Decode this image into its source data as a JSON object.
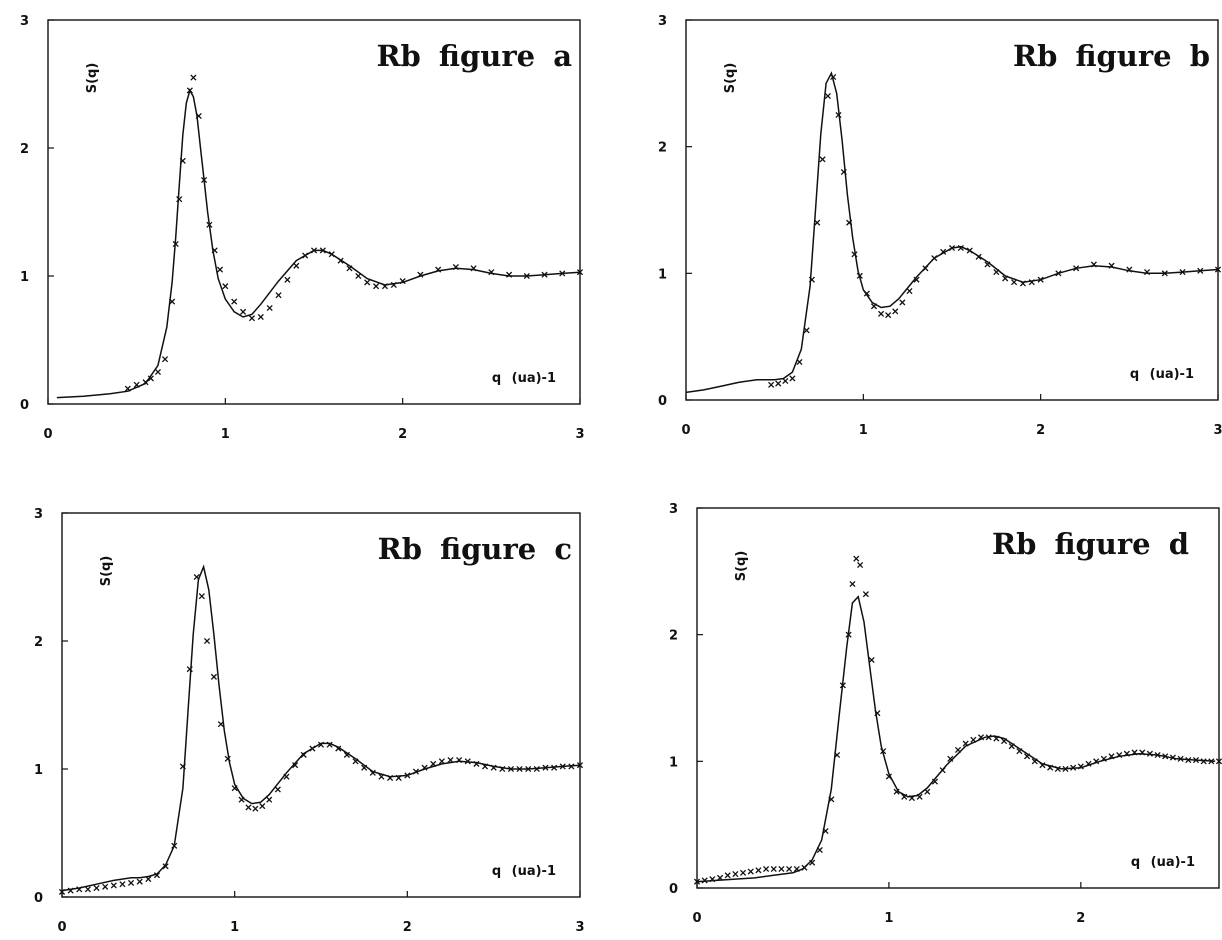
{
  "chart_data": [
    {
      "type": "line",
      "title": "Rb figure a",
      "xlabel": "q (ua)-1",
      "ylabel": "S(q)",
      "xlim": [
        0,
        3
      ],
      "ylim": [
        0,
        3
      ],
      "xticks": [
        "0",
        "1",
        "2",
        "3"
      ],
      "yticks": [
        "0",
        "1",
        "2",
        "3"
      ],
      "grid": false,
      "series": [
        {
          "kind": "line",
          "x": [
            0.05,
            0.2,
            0.35,
            0.45,
            0.55,
            0.62,
            0.67,
            0.7,
            0.72,
            0.74,
            0.76,
            0.78,
            0.8,
            0.82,
            0.84,
            0.86,
            0.88,
            0.9,
            0.93,
            0.96,
            1.0,
            1.05,
            1.1,
            1.15,
            1.2,
            1.3,
            1.4,
            1.5,
            1.55,
            1.6,
            1.7,
            1.8,
            1.9,
            2.0,
            2.1,
            2.2,
            2.3,
            2.4,
            2.5,
            2.6,
            2.7,
            2.8,
            2.9,
            3.0
          ],
          "y": [
            0.05,
            0.06,
            0.08,
            0.1,
            0.16,
            0.3,
            0.6,
            0.95,
            1.3,
            1.7,
            2.1,
            2.35,
            2.45,
            2.4,
            2.25,
            2.0,
            1.75,
            1.5,
            1.2,
            0.98,
            0.82,
            0.72,
            0.68,
            0.7,
            0.78,
            0.96,
            1.12,
            1.2,
            1.2,
            1.17,
            1.08,
            0.98,
            0.93,
            0.95,
            1.0,
            1.04,
            1.06,
            1.05,
            1.02,
            1.0,
            1.0,
            1.01,
            1.02,
            1.03
          ]
        },
        {
          "kind": "scatter",
          "x": [
            0.45,
            0.5,
            0.55,
            0.58,
            0.62,
            0.66,
            0.7,
            0.72,
            0.74,
            0.76,
            0.8,
            0.82,
            0.85,
            0.88,
            0.91,
            0.94,
            0.97,
            1.0,
            1.05,
            1.1,
            1.15,
            1.2,
            1.25,
            1.3,
            1.35,
            1.4,
            1.45,
            1.5,
            1.55,
            1.6,
            1.65,
            1.7,
            1.75,
            1.8,
            1.85,
            1.9,
            1.95,
            2.0,
            2.1,
            2.2,
            2.3,
            2.4,
            2.5,
            2.6,
            2.7,
            2.8,
            2.9,
            3.0
          ],
          "y": [
            0.12,
            0.15,
            0.17,
            0.2,
            0.25,
            0.35,
            0.8,
            1.25,
            1.6,
            1.9,
            2.45,
            2.55,
            2.25,
            1.75,
            1.4,
            1.2,
            1.05,
            0.92,
            0.8,
            0.72,
            0.67,
            0.68,
            0.75,
            0.85,
            0.97,
            1.08,
            1.16,
            1.2,
            1.2,
            1.17,
            1.12,
            1.06,
            1.0,
            0.95,
            0.92,
            0.92,
            0.93,
            0.96,
            1.01,
            1.05,
            1.07,
            1.06,
            1.03,
            1.01,
            1.0,
            1.01,
            1.02,
            1.03
          ]
        }
      ]
    },
    {
      "type": "line",
      "title": "Rb figure b",
      "xlabel": "q (ua)-1",
      "ylabel": "S(q)",
      "xlim": [
        0,
        3
      ],
      "ylim": [
        0,
        3
      ],
      "xticks": [
        "0",
        "1",
        "2",
        "3"
      ],
      "yticks": [
        "0",
        "1",
        "2",
        "3"
      ],
      "grid": false,
      "series": [
        {
          "kind": "line",
          "x": [
            0.0,
            0.1,
            0.2,
            0.3,
            0.4,
            0.5,
            0.55,
            0.6,
            0.65,
            0.7,
            0.73,
            0.76,
            0.79,
            0.82,
            0.85,
            0.88,
            0.91,
            0.94,
            0.97,
            1.0,
            1.05,
            1.1,
            1.15,
            1.2,
            1.3,
            1.4,
            1.5,
            1.55,
            1.6,
            1.7,
            1.8,
            1.9,
            2.0,
            2.1,
            2.2,
            2.3,
            2.4,
            2.5,
            2.6,
            2.7,
            2.8,
            2.9,
            3.0
          ],
          "y": [
            0.06,
            0.08,
            0.11,
            0.14,
            0.16,
            0.16,
            0.17,
            0.22,
            0.4,
            0.9,
            1.5,
            2.1,
            2.5,
            2.58,
            2.42,
            2.05,
            1.62,
            1.28,
            1.02,
            0.87,
            0.77,
            0.73,
            0.74,
            0.8,
            0.97,
            1.12,
            1.2,
            1.21,
            1.18,
            1.09,
            0.98,
            0.93,
            0.95,
            1.0,
            1.04,
            1.06,
            1.05,
            1.02,
            1.0,
            1.0,
            1.01,
            1.02,
            1.03
          ]
        },
        {
          "kind": "scatter",
          "x": [
            0.48,
            0.52,
            0.56,
            0.6,
            0.64,
            0.68,
            0.71,
            0.74,
            0.77,
            0.8,
            0.83,
            0.86,
            0.89,
            0.92,
            0.95,
            0.98,
            1.02,
            1.06,
            1.1,
            1.14,
            1.18,
            1.22,
            1.26,
            1.3,
            1.35,
            1.4,
            1.45,
            1.5,
            1.55,
            1.6,
            1.65,
            1.7,
            1.75,
            1.8,
            1.85,
            1.9,
            1.95,
            2.0,
            2.1,
            2.2,
            2.3,
            2.4,
            2.5,
            2.6,
            2.7,
            2.8,
            2.9,
            3.0
          ],
          "y": [
            0.12,
            0.13,
            0.15,
            0.17,
            0.3,
            0.55,
            0.95,
            1.4,
            1.9,
            2.4,
            2.55,
            2.25,
            1.8,
            1.4,
            1.15,
            0.98,
            0.84,
            0.74,
            0.68,
            0.67,
            0.7,
            0.77,
            0.86,
            0.95,
            1.04,
            1.12,
            1.17,
            1.2,
            1.2,
            1.18,
            1.13,
            1.07,
            1.01,
            0.96,
            0.93,
            0.92,
            0.93,
            0.95,
            1.0,
            1.04,
            1.07,
            1.06,
            1.03,
            1.01,
            1.0,
            1.01,
            1.02,
            1.03
          ]
        }
      ]
    },
    {
      "type": "line",
      "title": "Rb figure c",
      "xlabel": "q (ua)-1",
      "ylabel": "S(q)",
      "xlim": [
        0,
        3
      ],
      "ylim": [
        0,
        3
      ],
      "xticks": [
        "0",
        "1",
        "2",
        "3"
      ],
      "yticks": [
        "0",
        "1",
        "2",
        "3"
      ],
      "grid": false,
      "series": [
        {
          "kind": "line",
          "x": [
            0.0,
            0.1,
            0.2,
            0.3,
            0.4,
            0.45,
            0.5,
            0.55,
            0.6,
            0.65,
            0.7,
            0.73,
            0.76,
            0.79,
            0.82,
            0.85,
            0.88,
            0.91,
            0.94,
            0.97,
            1.0,
            1.05,
            1.1,
            1.15,
            1.2,
            1.3,
            1.4,
            1.5,
            1.55,
            1.6,
            1.7,
            1.8,
            1.9,
            2.0,
            2.1,
            2.2,
            2.3,
            2.4,
            2.5,
            2.6,
            2.7,
            2.8,
            2.9,
            3.0
          ],
          "y": [
            0.05,
            0.07,
            0.1,
            0.13,
            0.15,
            0.15,
            0.16,
            0.18,
            0.25,
            0.4,
            0.85,
            1.45,
            2.05,
            2.48,
            2.58,
            2.4,
            2.05,
            1.65,
            1.3,
            1.05,
            0.88,
            0.77,
            0.73,
            0.74,
            0.8,
            0.97,
            1.12,
            1.2,
            1.2,
            1.17,
            1.08,
            0.98,
            0.94,
            0.95,
            1.0,
            1.04,
            1.06,
            1.05,
            1.02,
            1.0,
            1.0,
            1.01,
            1.02,
            1.03
          ]
        },
        {
          "kind": "scatter",
          "x": [
            0.0,
            0.05,
            0.1,
            0.15,
            0.2,
            0.25,
            0.3,
            0.35,
            0.4,
            0.45,
            0.5,
            0.55,
            0.6,
            0.65,
            0.7,
            0.74,
            0.78,
            0.81,
            0.84,
            0.88,
            0.92,
            0.96,
            1.0,
            1.04,
            1.08,
            1.12,
            1.16,
            1.2,
            1.25,
            1.3,
            1.35,
            1.4,
            1.45,
            1.5,
            1.55,
            1.6,
            1.65,
            1.7,
            1.75,
            1.8,
            1.85,
            1.9,
            1.95,
            2.0,
            2.05,
            2.1,
            2.15,
            2.2,
            2.25,
            2.3,
            2.35,
            2.4,
            2.45,
            2.5,
            2.55,
            2.6,
            2.65,
            2.7,
            2.75,
            2.8,
            2.85,
            2.9,
            2.95,
            3.0
          ],
          "y": [
            0.04,
            0.05,
            0.06,
            0.06,
            0.07,
            0.08,
            0.09,
            0.1,
            0.11,
            0.12,
            0.14,
            0.17,
            0.24,
            0.4,
            1.02,
            1.78,
            2.5,
            2.35,
            2.0,
            1.72,
            1.35,
            1.08,
            0.85,
            0.76,
            0.7,
            0.69,
            0.71,
            0.76,
            0.84,
            0.94,
            1.03,
            1.11,
            1.16,
            1.19,
            1.19,
            1.16,
            1.11,
            1.06,
            1.01,
            0.97,
            0.94,
            0.93,
            0.93,
            0.95,
            0.98,
            1.01,
            1.04,
            1.06,
            1.07,
            1.07,
            1.06,
            1.04,
            1.02,
            1.01,
            1.0,
            1.0,
            1.0,
            1.0,
            1.0,
            1.01,
            1.01,
            1.02,
            1.02,
            1.03
          ]
        }
      ]
    },
    {
      "type": "line",
      "title": "Rb figure d",
      "xlabel": "q (ua)-1",
      "ylabel": "S(q)",
      "xlim": [
        0,
        3
      ],
      "ylim": [
        0,
        3
      ],
      "xticks": [
        "0",
        "1",
        "2"
      ],
      "yticks": [
        "0",
        "1",
        "2",
        "3"
      ],
      "grid": false,
      "series": [
        {
          "kind": "line",
          "x": [
            0.0,
            0.1,
            0.2,
            0.3,
            0.4,
            0.5,
            0.55,
            0.6,
            0.65,
            0.7,
            0.74,
            0.78,
            0.81,
            0.84,
            0.87,
            0.9,
            0.93,
            0.96,
            1.0,
            1.05,
            1.1,
            1.15,
            1.2,
            1.3,
            1.4,
            1.5,
            1.55,
            1.6,
            1.7,
            1.8,
            1.9,
            2.0,
            2.1,
            2.2,
            2.3,
            2.4,
            2.5,
            2.6,
            2.7
          ],
          "y": [
            0.05,
            0.06,
            0.07,
            0.08,
            0.1,
            0.12,
            0.15,
            0.22,
            0.38,
            0.78,
            1.35,
            1.9,
            2.25,
            2.3,
            2.1,
            1.75,
            1.4,
            1.12,
            0.9,
            0.76,
            0.72,
            0.73,
            0.79,
            0.97,
            1.12,
            1.19,
            1.2,
            1.18,
            1.08,
            0.98,
            0.94,
            0.95,
            1.0,
            1.04,
            1.06,
            1.05,
            1.02,
            1.01,
            1.0
          ]
        },
        {
          "kind": "scatter",
          "x": [
            0.0,
            0.04,
            0.08,
            0.12,
            0.16,
            0.2,
            0.24,
            0.28,
            0.32,
            0.36,
            0.4,
            0.44,
            0.48,
            0.52,
            0.56,
            0.6,
            0.64,
            0.67,
            0.7,
            0.73,
            0.76,
            0.79,
            0.81,
            0.83,
            0.85,
            0.88,
            0.91,
            0.94,
            0.97,
            1.0,
            1.04,
            1.08,
            1.12,
            1.16,
            1.2,
            1.24,
            1.28,
            1.32,
            1.36,
            1.4,
            1.44,
            1.48,
            1.52,
            1.56,
            1.6,
            1.64,
            1.68,
            1.72,
            1.76,
            1.8,
            1.84,
            1.88,
            1.92,
            1.96,
            2.0,
            2.04,
            2.08,
            2.12,
            2.16,
            2.2,
            2.24,
            2.28,
            2.32,
            2.36,
            2.4,
            2.44,
            2.48,
            2.52,
            2.56,
            2.6,
            2.64,
            2.68,
            2.72
          ],
          "y": [
            0.05,
            0.06,
            0.07,
            0.08,
            0.1,
            0.11,
            0.12,
            0.13,
            0.14,
            0.15,
            0.15,
            0.15,
            0.15,
            0.15,
            0.16,
            0.2,
            0.3,
            0.45,
            0.7,
            1.05,
            1.6,
            2.0,
            2.4,
            2.6,
            2.55,
            2.32,
            1.8,
            1.38,
            1.08,
            0.88,
            0.76,
            0.72,
            0.71,
            0.72,
            0.76,
            0.84,
            0.93,
            1.02,
            1.09,
            1.14,
            1.17,
            1.19,
            1.19,
            1.18,
            1.16,
            1.12,
            1.08,
            1.04,
            1.0,
            0.97,
            0.95,
            0.94,
            0.94,
            0.95,
            0.96,
            0.98,
            1.0,
            1.02,
            1.04,
            1.05,
            1.06,
            1.07,
            1.07,
            1.06,
            1.05,
            1.04,
            1.03,
            1.02,
            1.01,
            1.01,
            1.0,
            1.0,
            1.0
          ]
        }
      ]
    }
  ]
}
